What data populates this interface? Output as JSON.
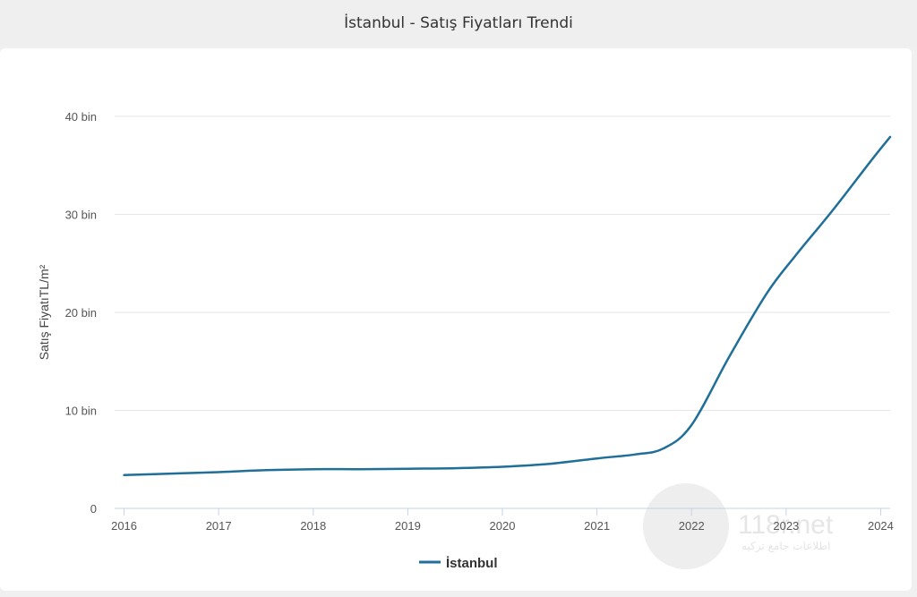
{
  "page": {
    "title": "İstanbul - Satış Fiyatları Trendi"
  },
  "colors": {
    "series": "#1f6f99",
    "grid": "#e6e6e6",
    "axis": "#c6d3e6"
  },
  "watermark": {
    "brand": "118r.net",
    "tagline": "اطلاعات جامع ترکیه"
  },
  "chart_data": {
    "type": "line",
    "title": "İstanbul - Satış Fiyatları Trendi",
    "xlabel": "",
    "ylabel": "Satış FiyatıTL/m²",
    "xlim": [
      2015.9,
      2024.1
    ],
    "ylim": [
      0,
      40000
    ],
    "x_ticks": [
      2016,
      2017,
      2018,
      2019,
      2020,
      2021,
      2022,
      2023,
      2024
    ],
    "x_tick_labels": [
      "2016",
      "2017",
      "2018",
      "2019",
      "2020",
      "2021",
      "2022",
      "2023",
      "2024"
    ],
    "y_ticks": [
      0,
      10000,
      20000,
      30000,
      40000
    ],
    "y_tick_labels": [
      "0",
      "10 bin",
      "20 bin",
      "30 bin",
      "40 bin"
    ],
    "legend": {
      "position": "bottom-center",
      "entries": [
        "İstanbul"
      ]
    },
    "series": [
      {
        "name": "İstanbul",
        "x": [
          2016.0,
          2016.5,
          2017.0,
          2017.5,
          2018.0,
          2018.5,
          2019.0,
          2019.5,
          2020.0,
          2020.5,
          2021.0,
          2021.4,
          2021.7,
          2022.0,
          2022.4,
          2022.8,
          2023.1,
          2023.5,
          2023.9,
          2024.1
        ],
        "values": [
          3400,
          3550,
          3700,
          3900,
          4000,
          4000,
          4050,
          4100,
          4250,
          4550,
          5100,
          5500,
          6100,
          8500,
          15500,
          22000,
          25800,
          30500,
          35500,
          37900
        ]
      }
    ]
  }
}
